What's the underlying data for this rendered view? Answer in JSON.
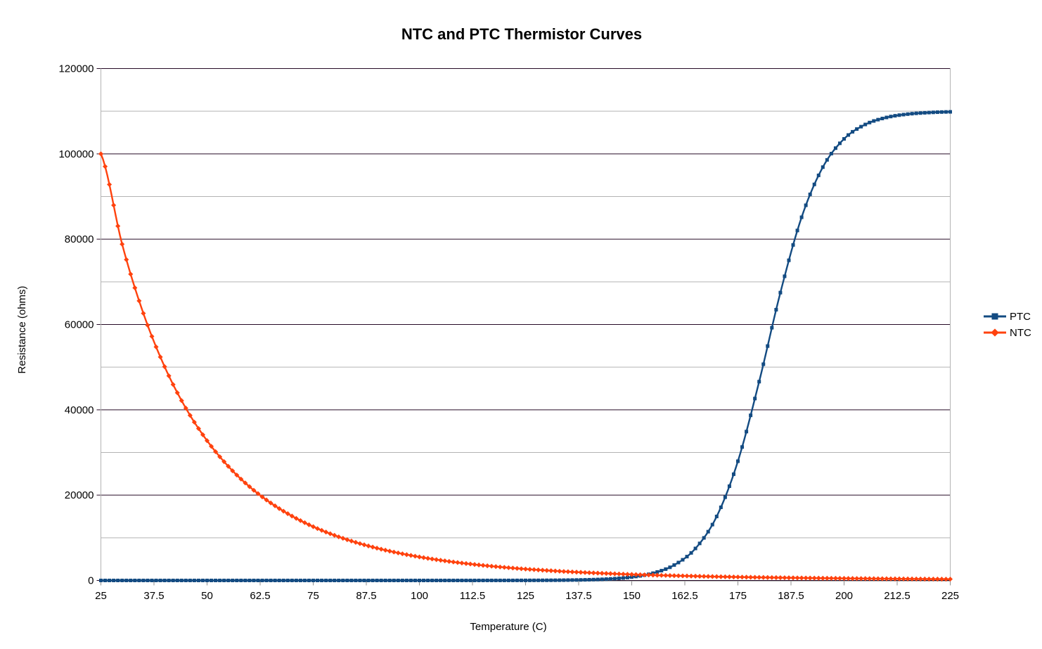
{
  "chart_data": {
    "type": "line",
    "title": "NTC and PTC Thermistor Curves",
    "xlabel": "Temperature (C)",
    "ylabel": "Resistance (ohms)",
    "xlim": [
      25,
      225
    ],
    "ylim": [
      0,
      120000
    ],
    "x_major_ticks": [
      25,
      37.5,
      50,
      62.5,
      75,
      87.5,
      100,
      112.5,
      125,
      137.5,
      150,
      162.5,
      175,
      187.5,
      200,
      212.5,
      225
    ],
    "x_tick_labels": [
      "25",
      "37.5",
      "50",
      "62.5",
      "75",
      "87.5",
      "100",
      "112.5",
      "125",
      "137.5",
      "150",
      "162.5",
      "175",
      "187.5",
      "200",
      "212.5",
      "225"
    ],
    "y_major_ticks": [
      0,
      20000,
      40000,
      60000,
      80000,
      100000,
      120000
    ],
    "y_tick_labels": [
      "0",
      "20000",
      "40000",
      "60000",
      "80000",
      "100000",
      "120000"
    ],
    "y_minor_ticks": [
      10000,
      30000,
      50000,
      70000,
      90000,
      110000
    ],
    "grid": {
      "major": true,
      "minor": true
    },
    "legend": {
      "position": "right"
    },
    "x": [
      25,
      30,
      35,
      40,
      45,
      50,
      55,
      60,
      65,
      70,
      75,
      80,
      85,
      90,
      95,
      100,
      105,
      110,
      115,
      120,
      125,
      130,
      135,
      140,
      145,
      150,
      155,
      160,
      165,
      170,
      175,
      180,
      185,
      190,
      195,
      200,
      205,
      210,
      215,
      220,
      225
    ],
    "series": [
      {
        "name": "PTC",
        "color": "#134B82",
        "marker": "square",
        "values": [
          0,
          0,
          0,
          0,
          0,
          0,
          0,
          0,
          0,
          0,
          0,
          0,
          0,
          0,
          0,
          0,
          1,
          2,
          4,
          8,
          17,
          37,
          80,
          172,
          370,
          794,
          1700,
          3607,
          7499,
          14995,
          27950,
          46603,
          67472,
          85139,
          96890,
          103511,
          106890,
          108537,
          109319,
          109683,
          109853
        ]
      },
      {
        "name": "NTC",
        "color": "#FF420E",
        "marker": "diamond",
        "values": [
          100000,
          78830,
          62620,
          50120,
          40390,
          32770,
          26750,
          21980,
          18160,
          15090,
          12600,
          10580,
          8930,
          7570,
          6450,
          5510,
          4730,
          4080,
          3530,
          3070,
          2670,
          2340,
          2050,
          1810,
          1600,
          1410,
          1250,
          1120,
          1000,
          893,
          801,
          721,
          650,
          587,
          531,
          482,
          438,
          399,
          364,
          333,
          305
        ]
      }
    ]
  },
  "colors": {
    "major_grid": "#260B26",
    "minor_grid": "#B3B3B3",
    "axis_line": "#B3B3B3",
    "x_tick": "#8F8F8F",
    "label_text": "#000000"
  }
}
